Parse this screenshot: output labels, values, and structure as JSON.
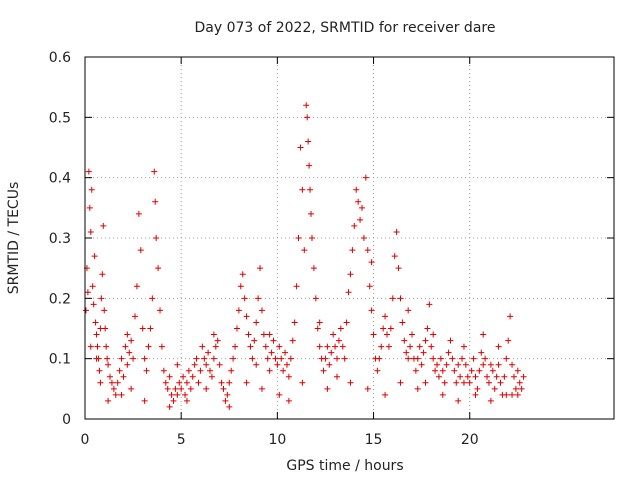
{
  "chart_data": {
    "type": "scatter",
    "title": "Day 073 of 2022, SRMTID for receiver dare",
    "xlabel": "GPS time / hours",
    "ylabel": "SRMTID / TECUs",
    "xlim": [
      0,
      27.5
    ],
    "ylim": [
      0,
      0.6
    ],
    "xticks": [
      0,
      5,
      10,
      15,
      20
    ],
    "yticks": [
      0,
      0.1,
      0.2,
      0.3,
      0.4,
      0.5,
      0.6
    ],
    "ytick_labels": [
      "0",
      "0.1",
      "0.2",
      "0.3",
      "0.4",
      "0.5",
      "0.6"
    ],
    "grid": true,
    "marker": "+",
    "colors": {
      "marker": "#e00000",
      "grid": "#a0a0a0",
      "axis": "#000000"
    },
    "series": [
      {
        "name": "SRMTID",
        "points": [
          [
            0.05,
            0.18
          ],
          [
            0.1,
            0.25
          ],
          [
            0.15,
            0.21
          ],
          [
            0.2,
            0.41
          ],
          [
            0.25,
            0.35
          ],
          [
            0.3,
            0.31
          ],
          [
            0.35,
            0.38
          ],
          [
            0.4,
            0.22
          ],
          [
            0.45,
            0.19
          ],
          [
            0.5,
            0.27
          ],
          [
            0.55,
            0.16
          ],
          [
            0.6,
            0.14
          ],
          [
            0.65,
            0.12
          ],
          [
            0.7,
            0.1
          ],
          [
            0.75,
            0.08
          ],
          [
            0.8,
            0.15
          ],
          [
            0.85,
            0.2
          ],
          [
            0.9,
            0.24
          ],
          [
            0.95,
            0.32
          ],
          [
            1.0,
            0.18
          ],
          [
            1.05,
            0.15
          ],
          [
            1.1,
            0.12
          ],
          [
            1.15,
            0.1
          ],
          [
            1.2,
            0.09
          ],
          [
            1.3,
            0.07
          ],
          [
            1.4,
            0.06
          ],
          [
            1.5,
            0.05
          ],
          [
            1.6,
            0.04
          ],
          [
            1.7,
            0.06
          ],
          [
            1.8,
            0.08
          ],
          [
            1.9,
            0.1
          ],
          [
            2.0,
            0.07
          ],
          [
            2.1,
            0.12
          ],
          [
            2.2,
            0.09
          ],
          [
            2.3,
            0.11
          ],
          [
            2.4,
            0.13
          ],
          [
            2.5,
            0.1
          ],
          [
            2.6,
            0.17
          ],
          [
            2.7,
            0.22
          ],
          [
            2.8,
            0.34
          ],
          [
            2.9,
            0.28
          ],
          [
            3.0,
            0.15
          ],
          [
            3.1,
            0.1
          ],
          [
            3.2,
            0.08
          ],
          [
            3.3,
            0.12
          ],
          [
            3.4,
            0.15
          ],
          [
            3.5,
            0.2
          ],
          [
            3.6,
            0.41
          ],
          [
            3.65,
            0.36
          ],
          [
            3.7,
            0.3
          ],
          [
            3.8,
            0.25
          ],
          [
            3.9,
            0.18
          ],
          [
            4.0,
            0.12
          ],
          [
            4.1,
            0.08
          ],
          [
            4.2,
            0.06
          ],
          [
            4.3,
            0.05
          ],
          [
            4.4,
            0.07
          ],
          [
            4.5,
            0.04
          ],
          [
            4.6,
            0.03
          ],
          [
            4.7,
            0.05
          ],
          [
            4.8,
            0.04
          ],
          [
            4.9,
            0.06
          ],
          [
            5.0,
            0.05
          ],
          [
            5.1,
            0.07
          ],
          [
            5.2,
            0.04
          ],
          [
            5.3,
            0.06
          ],
          [
            5.4,
            0.08
          ],
          [
            5.5,
            0.05
          ],
          [
            5.6,
            0.07
          ],
          [
            5.7,
            0.09
          ],
          [
            5.8,
            0.1
          ],
          [
            5.9,
            0.06
          ],
          [
            6.0,
            0.08
          ],
          [
            6.1,
            0.12
          ],
          [
            6.2,
            0.1
          ],
          [
            6.3,
            0.09
          ],
          [
            6.4,
            0.11
          ],
          [
            6.5,
            0.08
          ],
          [
            6.6,
            0.07
          ],
          [
            6.7,
            0.1
          ],
          [
            6.8,
            0.12
          ],
          [
            6.9,
            0.13
          ],
          [
            7.0,
            0.09
          ],
          [
            7.1,
            0.06
          ],
          [
            7.2,
            0.05
          ],
          [
            7.3,
            0.03
          ],
          [
            7.4,
            0.04
          ],
          [
            7.5,
            0.06
          ],
          [
            7.6,
            0.08
          ],
          [
            7.7,
            0.1
          ],
          [
            7.8,
            0.12
          ],
          [
            7.9,
            0.15
          ],
          [
            8.0,
            0.18
          ],
          [
            8.1,
            0.22
          ],
          [
            8.2,
            0.24
          ],
          [
            8.3,
            0.2
          ],
          [
            8.4,
            0.17
          ],
          [
            8.5,
            0.14
          ],
          [
            8.6,
            0.12
          ],
          [
            8.7,
            0.1
          ],
          [
            8.8,
            0.13
          ],
          [
            8.9,
            0.16
          ],
          [
            9.0,
            0.2
          ],
          [
            9.1,
            0.25
          ],
          [
            9.2,
            0.18
          ],
          [
            9.3,
            0.14
          ],
          [
            9.4,
            0.12
          ],
          [
            9.5,
            0.1
          ],
          [
            9.6,
            0.08
          ],
          [
            9.7,
            0.11
          ],
          [
            9.8,
            0.13
          ],
          [
            9.9,
            0.1
          ],
          [
            10.0,
            0.09
          ],
          [
            10.1,
            0.12
          ],
          [
            10.2,
            0.1
          ],
          [
            10.3,
            0.08
          ],
          [
            10.4,
            0.11
          ],
          [
            10.5,
            0.09
          ],
          [
            10.6,
            0.07
          ],
          [
            10.7,
            0.1
          ],
          [
            10.8,
            0.13
          ],
          [
            10.9,
            0.16
          ],
          [
            11.0,
            0.22
          ],
          [
            11.1,
            0.3
          ],
          [
            11.2,
            0.45
          ],
          [
            11.3,
            0.38
          ],
          [
            11.4,
            0.28
          ],
          [
            11.5,
            0.52
          ],
          [
            11.55,
            0.5
          ],
          [
            11.6,
            0.46
          ],
          [
            11.65,
            0.42
          ],
          [
            11.7,
            0.38
          ],
          [
            11.75,
            0.34
          ],
          [
            11.8,
            0.3
          ],
          [
            11.9,
            0.25
          ],
          [
            12.0,
            0.2
          ],
          [
            12.1,
            0.15
          ],
          [
            12.2,
            0.12
          ],
          [
            12.3,
            0.1
          ],
          [
            12.4,
            0.08
          ],
          [
            12.5,
            0.1
          ],
          [
            12.6,
            0.12
          ],
          [
            12.7,
            0.09
          ],
          [
            12.8,
            0.11
          ],
          [
            12.9,
            0.14
          ],
          [
            13.0,
            0.12
          ],
          [
            13.1,
            0.1
          ],
          [
            13.2,
            0.13
          ],
          [
            13.3,
            0.15
          ],
          [
            13.4,
            0.12
          ],
          [
            13.5,
            0.1
          ],
          [
            13.6,
            0.16
          ],
          [
            13.7,
            0.21
          ],
          [
            13.8,
            0.24
          ],
          [
            13.9,
            0.28
          ],
          [
            14.0,
            0.32
          ],
          [
            14.1,
            0.38
          ],
          [
            14.2,
            0.36
          ],
          [
            14.3,
            0.33
          ],
          [
            14.4,
            0.35
          ],
          [
            14.5,
            0.3
          ],
          [
            14.6,
            0.4
          ],
          [
            14.7,
            0.28
          ],
          [
            14.8,
            0.22
          ],
          [
            14.9,
            0.18
          ],
          [
            15.0,
            0.14
          ],
          [
            15.1,
            0.1
          ],
          [
            15.2,
            0.08
          ],
          [
            15.3,
            0.1
          ],
          [
            15.4,
            0.12
          ],
          [
            15.5,
            0.15
          ],
          [
            15.6,
            0.17
          ],
          [
            15.7,
            0.14
          ],
          [
            15.8,
            0.12
          ],
          [
            15.9,
            0.15
          ],
          [
            16.0,
            0.2
          ],
          [
            16.1,
            0.27
          ],
          [
            16.2,
            0.31
          ],
          [
            16.3,
            0.25
          ],
          [
            16.4,
            0.2
          ],
          [
            16.5,
            0.16
          ],
          [
            16.6,
            0.13
          ],
          [
            16.7,
            0.11
          ],
          [
            16.8,
            0.1
          ],
          [
            16.9,
            0.12
          ],
          [
            17.0,
            0.14
          ],
          [
            17.1,
            0.1
          ],
          [
            17.2,
            0.08
          ],
          [
            17.3,
            0.1
          ],
          [
            17.4,
            0.12
          ],
          [
            17.5,
            0.09
          ],
          [
            17.6,
            0.11
          ],
          [
            17.7,
            0.13
          ],
          [
            17.8,
            0.15
          ],
          [
            17.9,
            0.19
          ],
          [
            18.0,
            0.12
          ],
          [
            18.1,
            0.1
          ],
          [
            18.2,
            0.08
          ],
          [
            18.3,
            0.09
          ],
          [
            18.4,
            0.07
          ],
          [
            18.5,
            0.1
          ],
          [
            18.6,
            0.08
          ],
          [
            18.7,
            0.06
          ],
          [
            18.8,
            0.09
          ],
          [
            18.9,
            0.11
          ],
          [
            19.0,
            0.13
          ],
          [
            19.1,
            0.1
          ],
          [
            19.2,
            0.08
          ],
          [
            19.3,
            0.06
          ],
          [
            19.4,
            0.09
          ],
          [
            19.5,
            0.07
          ],
          [
            19.6,
            0.1
          ],
          [
            19.7,
            0.12
          ],
          [
            19.8,
            0.09
          ],
          [
            19.9,
            0.07
          ],
          [
            20.0,
            0.06
          ],
          [
            20.1,
            0.08
          ],
          [
            20.2,
            0.1
          ],
          [
            20.3,
            0.07
          ],
          [
            20.4,
            0.05
          ],
          [
            20.5,
            0.08
          ],
          [
            20.6,
            0.11
          ],
          [
            20.7,
            0.14
          ],
          [
            20.8,
            0.1
          ],
          [
            20.9,
            0.07
          ],
          [
            21.0,
            0.06
          ],
          [
            21.1,
            0.09
          ],
          [
            21.2,
            0.08
          ],
          [
            21.3,
            0.05
          ],
          [
            21.4,
            0.07
          ],
          [
            21.5,
            0.09
          ],
          [
            21.6,
            0.06
          ],
          [
            21.7,
            0.04
          ],
          [
            21.8,
            0.07
          ],
          [
            21.9,
            0.1
          ],
          [
            22.0,
            0.13
          ],
          [
            22.1,
            0.17
          ],
          [
            22.2,
            0.09
          ],
          [
            22.3,
            0.07
          ],
          [
            22.4,
            0.05
          ],
          [
            22.5,
            0.08
          ],
          [
            22.6,
            0.06
          ],
          [
            22.7,
            0.05
          ],
          [
            22.8,
            0.07
          ],
          [
            0.3,
            0.12
          ],
          [
            0.6,
            0.1
          ],
          [
            1.2,
            0.03
          ],
          [
            1.9,
            0.04
          ],
          [
            2.4,
            0.05
          ],
          [
            3.1,
            0.03
          ],
          [
            4.4,
            0.02
          ],
          [
            5.3,
            0.03
          ],
          [
            6.3,
            0.05
          ],
          [
            7.5,
            0.02
          ],
          [
            8.4,
            0.06
          ],
          [
            9.2,
            0.05
          ],
          [
            10.1,
            0.04
          ],
          [
            10.6,
            0.03
          ],
          [
            11.3,
            0.06
          ],
          [
            12.6,
            0.05
          ],
          [
            13.8,
            0.06
          ],
          [
            14.7,
            0.05
          ],
          [
            15.6,
            0.04
          ],
          [
            16.4,
            0.06
          ],
          [
            17.3,
            0.05
          ],
          [
            18.6,
            0.04
          ],
          [
            19.4,
            0.03
          ],
          [
            20.3,
            0.04
          ],
          [
            21.1,
            0.03
          ],
          [
            21.9,
            0.04
          ],
          [
            22.5,
            0.04
          ],
          [
            0.8,
            0.06
          ],
          [
            2.2,
            0.14
          ],
          [
            4.8,
            0.09
          ],
          [
            6.7,
            0.14
          ],
          [
            8.9,
            0.09
          ],
          [
            9.6,
            0.14
          ],
          [
            12.2,
            0.16
          ],
          [
            13.1,
            0.07
          ],
          [
            14.9,
            0.26
          ],
          [
            16.8,
            0.18
          ],
          [
            17.7,
            0.06
          ],
          [
            18.1,
            0.14
          ],
          [
            19.7,
            0.06
          ],
          [
            20.7,
            0.09
          ],
          [
            21.5,
            0.12
          ],
          [
            22.2,
            0.04
          ]
        ]
      }
    ]
  }
}
